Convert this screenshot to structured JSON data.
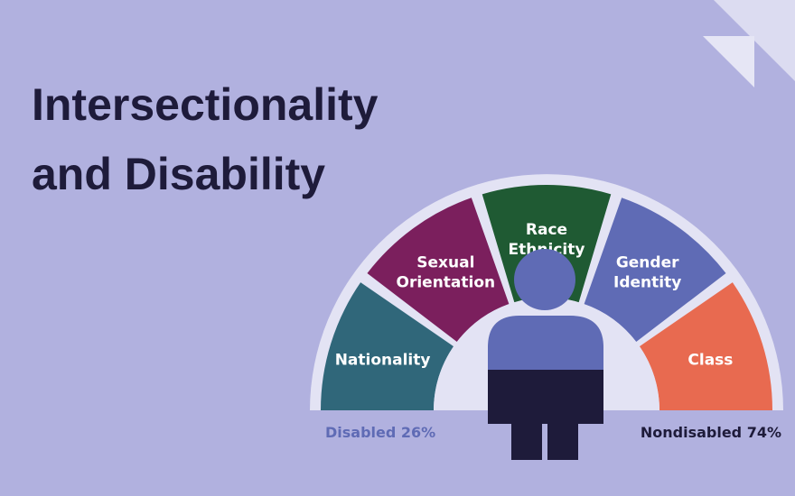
{
  "title": [
    "Intersectionality",
    "and Disability"
  ],
  "segments": [
    {
      "label": [
        "Nationality"
      ],
      "color": "#30677a"
    },
    {
      "label": [
        "Sexual",
        "Orientation"
      ],
      "color": "#7b1f5d"
    },
    {
      "label": [
        "Race",
        "Ethnicity"
      ],
      "color": "#1f5a33"
    },
    {
      "label": [
        "Gender",
        "Identity"
      ],
      "color": "#5f6bb5"
    },
    {
      "label": [
        "Class"
      ],
      "color": "#e86a50"
    }
  ],
  "footer": {
    "left": "Disabled 26%",
    "right": "Nondisabled 74%"
  }
}
